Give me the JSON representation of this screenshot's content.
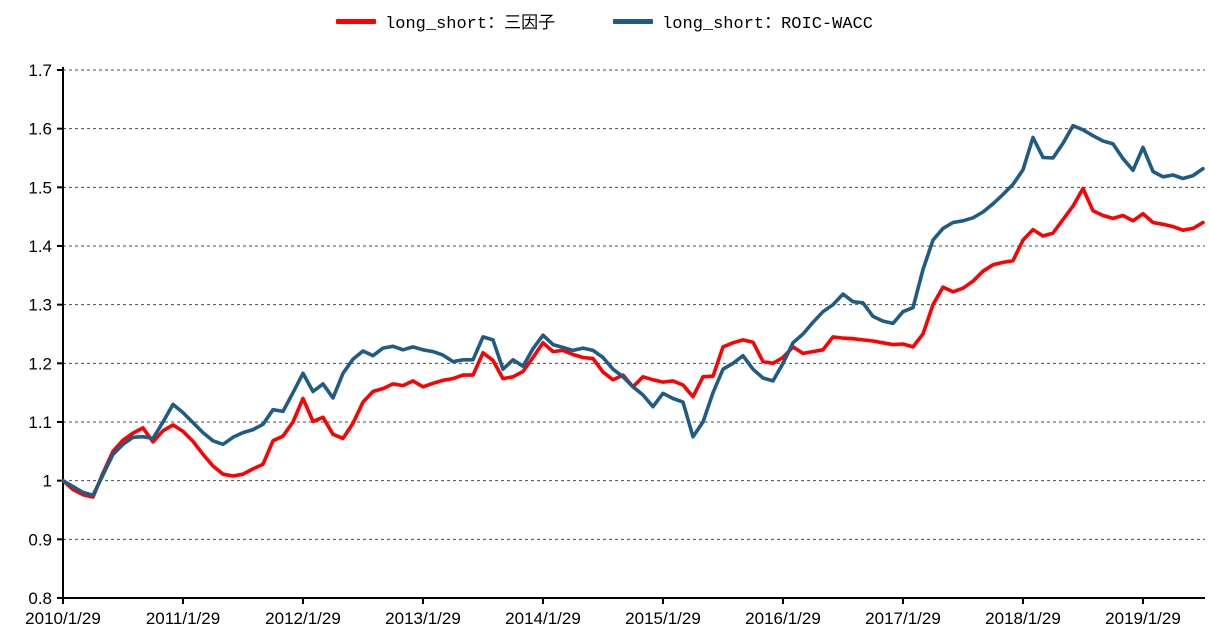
{
  "chart_data": {
    "type": "line",
    "title": "",
    "xlabel": "",
    "ylabel": "",
    "x_frequency": "monthly",
    "x_months": [
      "2010/1",
      "2010/2",
      "2010/3",
      "2010/4",
      "2010/5",
      "2010/6",
      "2010/7",
      "2010/8",
      "2010/9",
      "2010/10",
      "2010/11",
      "2010/12",
      "2011/1",
      "2011/2",
      "2011/3",
      "2011/4",
      "2011/5",
      "2011/6",
      "2011/7",
      "2011/8",
      "2011/9",
      "2011/10",
      "2011/11",
      "2011/12",
      "2012/1",
      "2012/2",
      "2012/3",
      "2012/4",
      "2012/5",
      "2012/6",
      "2012/7",
      "2012/8",
      "2012/9",
      "2012/10",
      "2012/11",
      "2012/12",
      "2013/1",
      "2013/2",
      "2013/3",
      "2013/4",
      "2013/5",
      "2013/6",
      "2013/7",
      "2013/8",
      "2013/9",
      "2013/10",
      "2013/11",
      "2013/12",
      "2014/1",
      "2014/2",
      "2014/3",
      "2014/4",
      "2014/5",
      "2014/6",
      "2014/7",
      "2014/8",
      "2014/9",
      "2014/10",
      "2014/11",
      "2014/12",
      "2015/1",
      "2015/2",
      "2015/3",
      "2015/4",
      "2015/5",
      "2015/6",
      "2015/7",
      "2015/8",
      "2015/9",
      "2015/10",
      "2015/11",
      "2015/12",
      "2016/1",
      "2016/2",
      "2016/3",
      "2016/4",
      "2016/5",
      "2016/6",
      "2016/7",
      "2016/8",
      "2016/9",
      "2016/10",
      "2016/11",
      "2016/12",
      "2017/1",
      "2017/2",
      "2017/3",
      "2017/4",
      "2017/5",
      "2017/6",
      "2017/7",
      "2017/8",
      "2017/9",
      "2017/10",
      "2017/11",
      "2017/12",
      "2018/1",
      "2018/2",
      "2018/3",
      "2018/4",
      "2018/5",
      "2018/6",
      "2018/7",
      "2018/8",
      "2018/9",
      "2018/10",
      "2018/11",
      "2018/12",
      "2019/1",
      "2019/2",
      "2019/3",
      "2019/4",
      "2019/5",
      "2019/6",
      "2019/7"
    ],
    "x_tick_labels": [
      "2010/1/29",
      "2011/1/29",
      "2012/1/29",
      "2013/1/29",
      "2014/1/29",
      "2015/1/29",
      "2016/1/29",
      "2017/1/29",
      "2018/1/29",
      "2019/1/29"
    ],
    "y_tick_labels": [
      "0.8",
      "0.9",
      "1",
      "1.1",
      "1.2",
      "1.3",
      "1.4",
      "1.5",
      "1.6",
      "1.7"
    ],
    "ylim": [
      0.8,
      1.7
    ],
    "grid": "horizontal-dashed",
    "legend_position": "top-center",
    "series": [
      {
        "name": "long_short：三因子",
        "color": "#FF0000",
        "values": [
          1.0,
          0.985,
          0.976,
          0.972,
          1.013,
          1.05,
          1.069,
          1.081,
          1.09,
          1.066,
          1.085,
          1.095,
          1.084,
          1.067,
          1.045,
          1.025,
          1.011,
          1.008,
          1.011,
          1.02,
          1.028,
          1.068,
          1.076,
          1.1,
          1.14,
          1.101,
          1.108,
          1.079,
          1.072,
          1.098,
          1.134,
          1.152,
          1.157,
          1.165,
          1.162,
          1.17,
          1.16,
          1.166,
          1.171,
          1.174,
          1.18,
          1.18,
          1.218,
          1.205,
          1.174,
          1.177,
          1.186,
          1.21,
          1.235,
          1.22,
          1.222,
          1.215,
          1.21,
          1.208,
          1.185,
          1.172,
          1.18,
          1.16,
          1.177,
          1.172,
          1.168,
          1.17,
          1.163,
          1.143,
          1.177,
          1.178,
          1.228,
          1.235,
          1.24,
          1.236,
          1.203,
          1.2,
          1.21,
          1.228,
          1.217,
          1.22,
          1.223,
          1.245,
          1.243,
          1.242,
          1.24,
          1.238,
          1.235,
          1.232,
          1.233,
          1.228,
          1.25,
          1.3,
          1.33,
          1.322,
          1.328,
          1.34,
          1.357,
          1.368,
          1.372,
          1.375,
          1.41,
          1.428,
          1.417,
          1.422,
          1.445,
          1.468,
          1.498,
          1.46,
          1.452,
          1.447,
          1.452,
          1.443,
          1.455,
          1.44,
          1.437,
          1.433,
          1.427,
          1.43,
          1.44
        ]
      },
      {
        "name": "long_short：ROIC-WACC",
        "color": "#1F5C85",
        "values": [
          1.0,
          0.99,
          0.98,
          0.975,
          1.01,
          1.045,
          1.062,
          1.074,
          1.075,
          1.072,
          1.1,
          1.13,
          1.116,
          1.099,
          1.082,
          1.068,
          1.062,
          1.074,
          1.082,
          1.087,
          1.096,
          1.121,
          1.118,
          1.15,
          1.183,
          1.152,
          1.165,
          1.141,
          1.183,
          1.207,
          1.221,
          1.213,
          1.226,
          1.229,
          1.223,
          1.228,
          1.223,
          1.22,
          1.214,
          1.203,
          1.206,
          1.206,
          1.245,
          1.24,
          1.19,
          1.206,
          1.195,
          1.225,
          1.248,
          1.232,
          1.227,
          1.222,
          1.226,
          1.222,
          1.21,
          1.19,
          1.177,
          1.16,
          1.146,
          1.126,
          1.149,
          1.14,
          1.134,
          1.075,
          1.1,
          1.15,
          1.19,
          1.2,
          1.213,
          1.19,
          1.175,
          1.17,
          1.2,
          1.235,
          1.25,
          1.27,
          1.288,
          1.3,
          1.318,
          1.305,
          1.303,
          1.28,
          1.272,
          1.268,
          1.288,
          1.295,
          1.36,
          1.41,
          1.43,
          1.44,
          1.443,
          1.448,
          1.458,
          1.472,
          1.488,
          1.505,
          1.53,
          1.585,
          1.551,
          1.55,
          1.575,
          1.605,
          1.598,
          1.588,
          1.579,
          1.574,
          1.549,
          1.529,
          1.568,
          1.527,
          1.518,
          1.521,
          1.515,
          1.52,
          1.532
        ]
      }
    ]
  }
}
